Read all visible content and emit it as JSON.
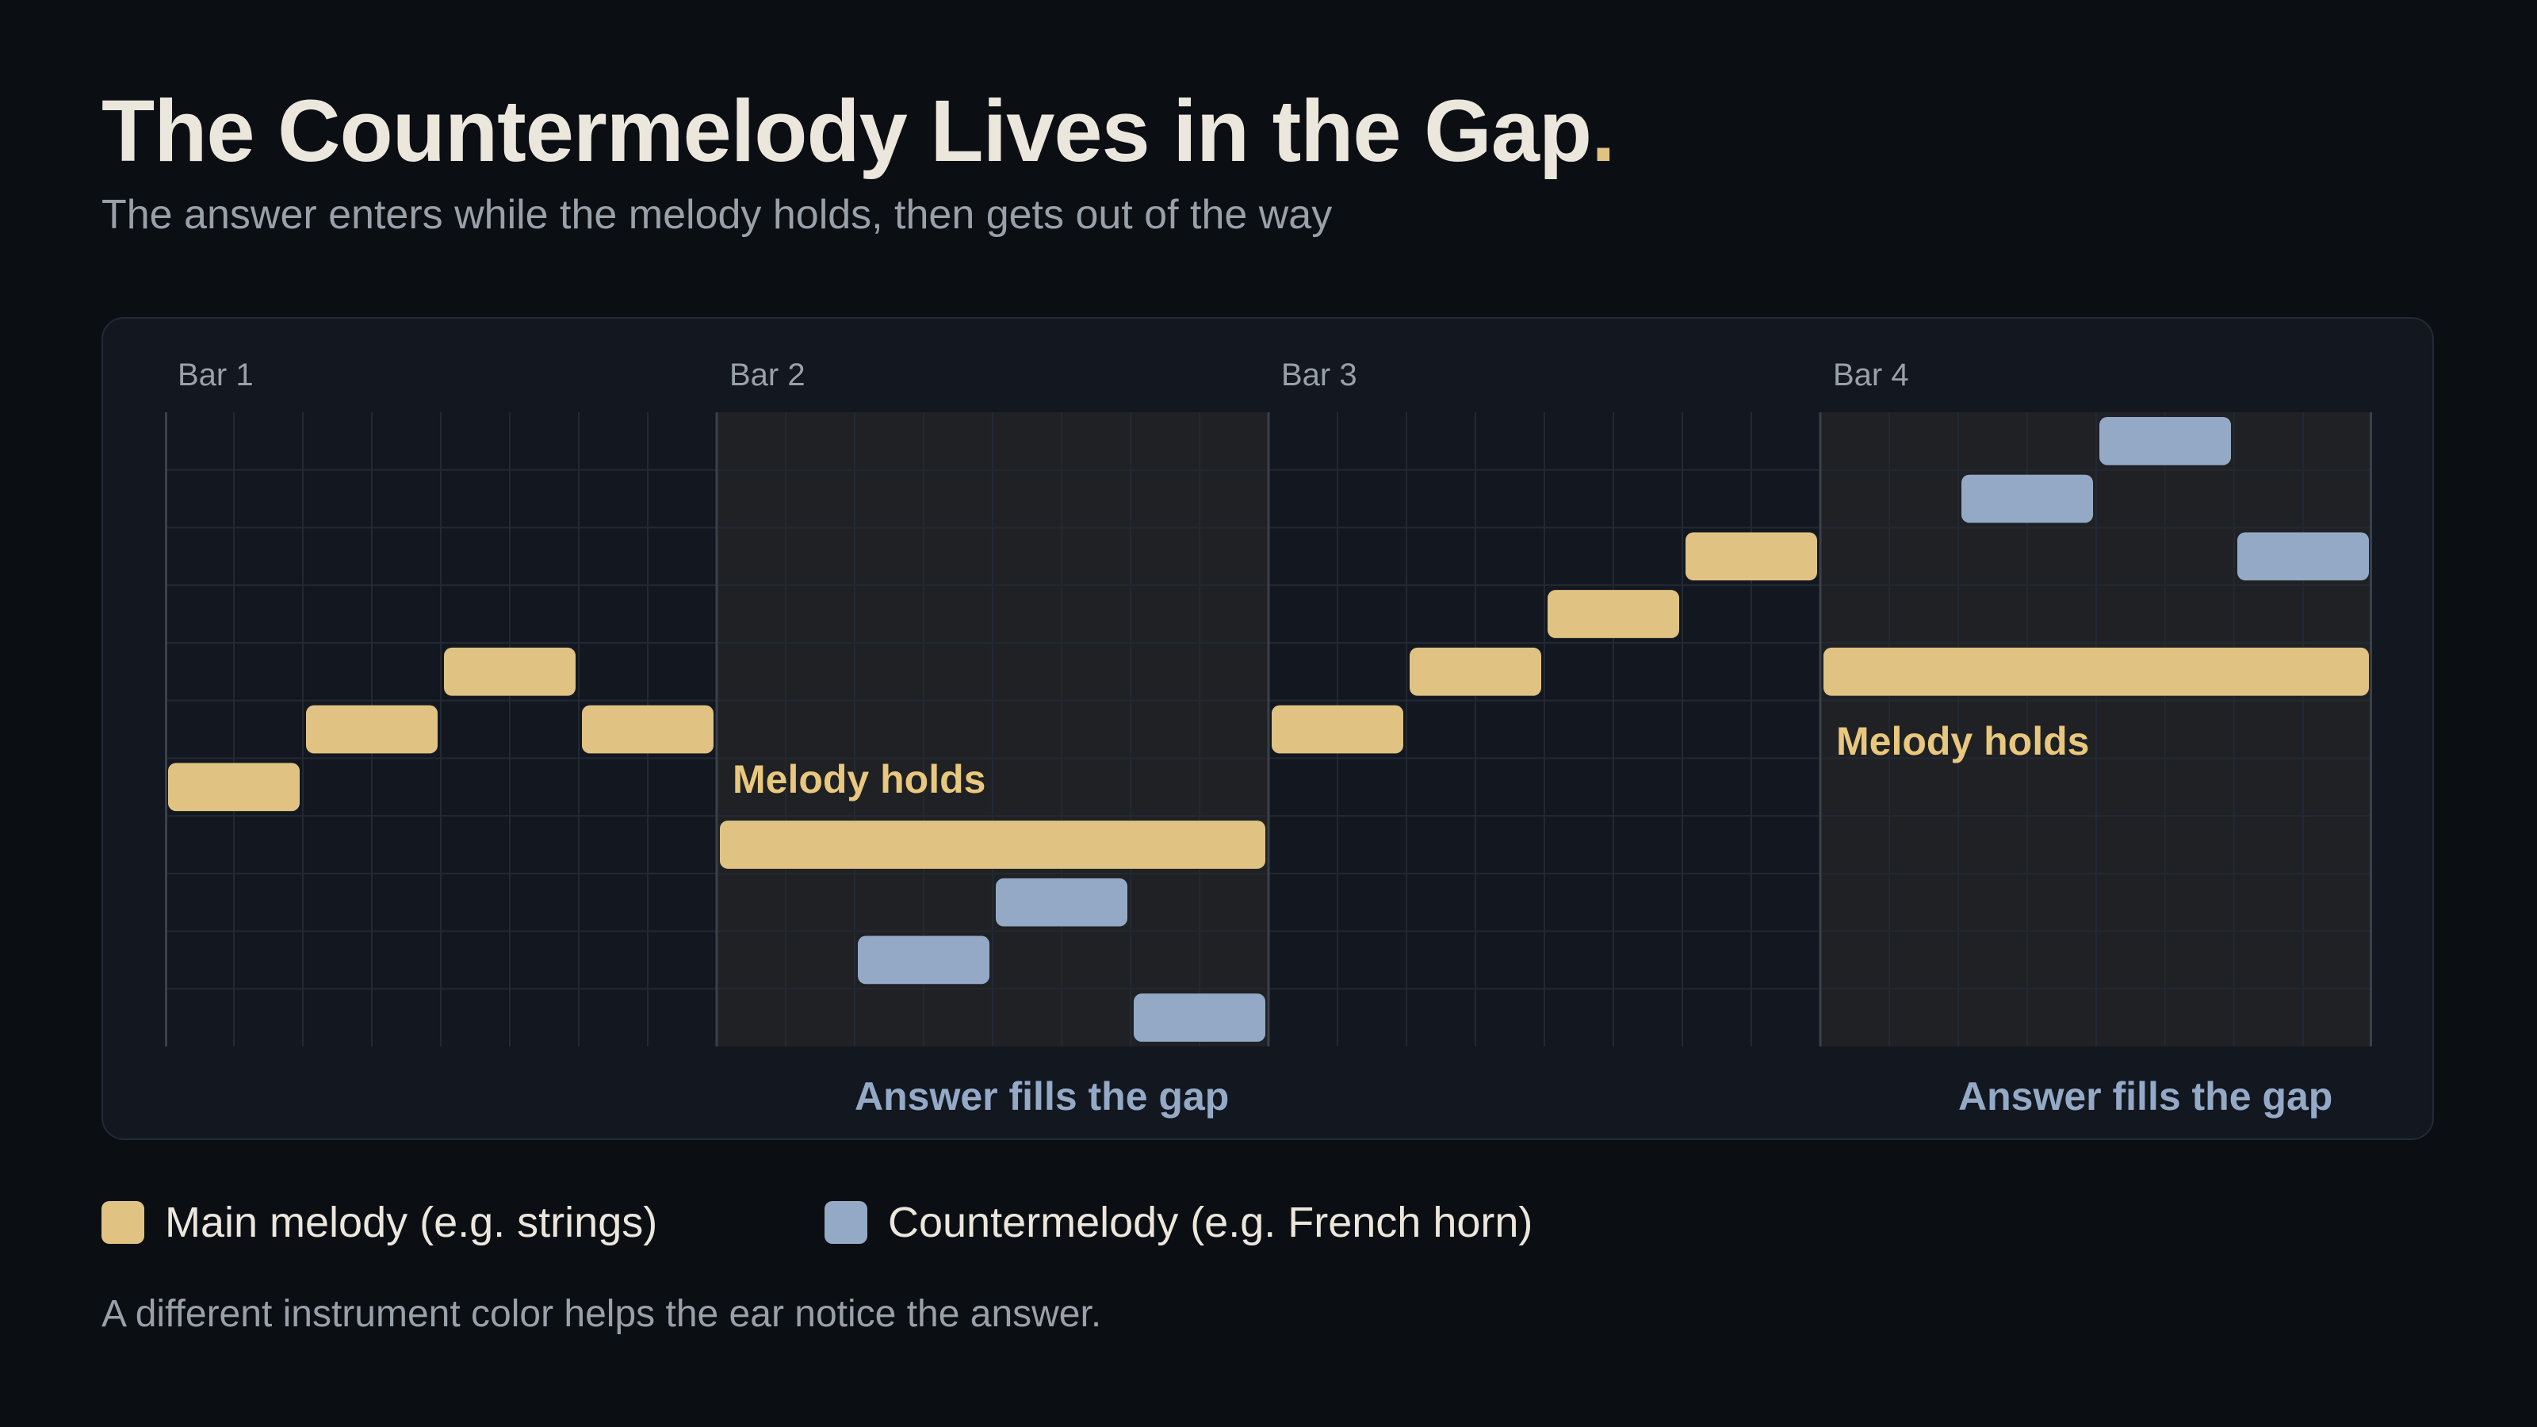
{
  "title": "The Countermelody Lives in the Gap",
  "title_dot": ".",
  "subtitle": "The answer enters while the melody holds, then gets out of the way",
  "bars": [
    "Bar 1",
    "Bar 2",
    "Bar 3",
    "Bar 4"
  ],
  "annotations": {
    "melody_holds_1": "Melody holds",
    "melody_holds_2": "Melody holds",
    "answer_1": "Answer fills the gap",
    "answer_2": "Answer fills the gap"
  },
  "legend": {
    "melody": "Main melody (e.g. strings)",
    "counter": "Countermelody (e.g. French horn)"
  },
  "footnote": "A different instrument color helps the ear notice the answer.",
  "colors": {
    "background": "#0b0e13",
    "melody": "#e0c283",
    "countermelody": "#94a9c6",
    "highlight_bar": "#202124"
  },
  "roll": {
    "beats_per_bar": 4,
    "subdivisions_per_beat": 2,
    "pitch_rows": 11,
    "highlighted_bars": [
      2,
      4
    ],
    "melody_notes": [
      {
        "start": 0,
        "duration": 2,
        "row": 6
      },
      {
        "start": 2,
        "duration": 2,
        "row": 5
      },
      {
        "start": 4,
        "duration": 2,
        "row": 4
      },
      {
        "start": 6,
        "duration": 2,
        "row": 5
      },
      {
        "start": 8,
        "duration": 8,
        "row": 7
      },
      {
        "start": 16,
        "duration": 2,
        "row": 5
      },
      {
        "start": 18,
        "duration": 2,
        "row": 4
      },
      {
        "start": 20,
        "duration": 2,
        "row": 3
      },
      {
        "start": 22,
        "duration": 2,
        "row": 2
      },
      {
        "start": 24,
        "duration": 8,
        "row": 4
      }
    ],
    "counter_notes": [
      {
        "start": 10,
        "duration": 2,
        "row": 9
      },
      {
        "start": 12,
        "duration": 2,
        "row": 8
      },
      {
        "start": 14,
        "duration": 2,
        "row": 10
      },
      {
        "start": 26,
        "duration": 2,
        "row": 1
      },
      {
        "start": 28,
        "duration": 2,
        "row": 0
      },
      {
        "start": 30,
        "duration": 2,
        "row": 2
      }
    ]
  }
}
